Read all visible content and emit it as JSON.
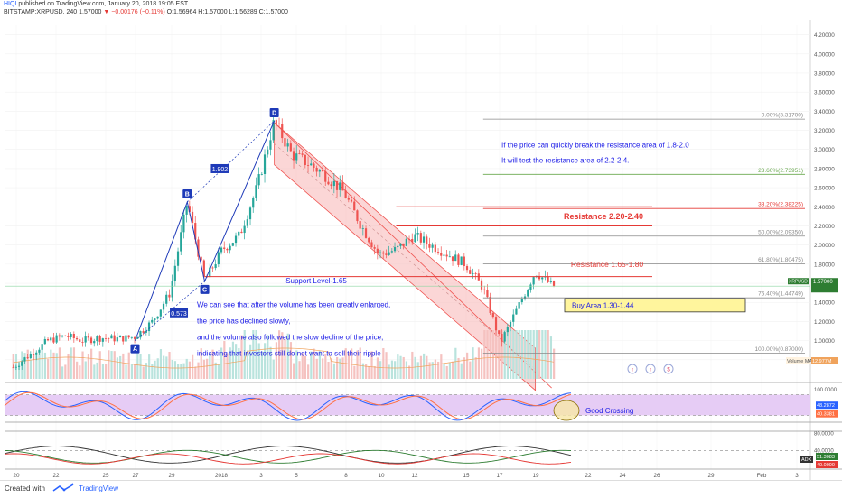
{
  "header": {
    "author": "HIQI",
    "published": "published on TradingView.com, January 20, 2018 19:05 EST",
    "symbol": "BITSTAMP:XRPUSD, 240",
    "last": "1.57000",
    "change": "▼ −0.00176 (−0.11%)",
    "ohlc": "O:1.56964 H:1.57000 L:1.56289 C:1.57000"
  },
  "chart_data": [
    {
      "type": "candlestick",
      "ylim": [
        0.6,
        4.3
      ],
      "y_ticks": [
        4.2,
        4.0,
        3.8,
        3.6,
        3.4,
        3.2,
        3.0,
        2.8,
        2.6,
        2.4,
        2.2,
        2.0,
        1.8,
        1.6,
        1.4,
        1.2,
        1.0,
        0.8
      ],
      "x_ticks": [
        "20",
        "22",
        "25",
        "27",
        "29",
        "2018",
        "3",
        "5",
        "8",
        "10",
        "12",
        "15",
        "17",
        "19",
        "22",
        "24",
        "26",
        "29",
        "Feb",
        "3"
      ],
      "price_path": [
        {
          "x": "2017-12-20",
          "y": 0.72
        },
        {
          "x": "2017-12-21",
          "y": 0.86
        },
        {
          "x": "2017-12-22",
          "y": 1.0
        },
        {
          "x": "2017-12-23",
          "y": 1.05
        },
        {
          "x": "2017-12-24",
          "y": 1.0
        },
        {
          "x": "2017-12-25",
          "y": 1.03
        },
        {
          "x": "2017-12-26",
          "y": 1.02
        },
        {
          "x": "2017-12-27",
          "y": 1.04
        },
        {
          "x": "2017-12-28",
          "y": 1.2
        },
        {
          "x": "2017-12-29",
          "y": 1.5
        },
        {
          "x": "2017-12-30",
          "y": 2.45
        },
        {
          "x": "2017-12-31",
          "y": 1.62
        },
        {
          "x": "2018-01-01",
          "y": 1.95
        },
        {
          "x": "2018-01-02",
          "y": 2.1
        },
        {
          "x": "2018-01-03",
          "y": 2.6
        },
        {
          "x": "2018-01-04",
          "y": 3.3
        },
        {
          "x": "2018-01-05",
          "y": 2.95
        },
        {
          "x": "2018-01-06",
          "y": 2.85
        },
        {
          "x": "2018-01-07",
          "y": 2.72
        },
        {
          "x": "2018-01-08",
          "y": 2.55
        },
        {
          "x": "2018-01-09",
          "y": 2.2
        },
        {
          "x": "2018-01-10",
          "y": 1.9
        },
        {
          "x": "2018-01-11",
          "y": 1.95
        },
        {
          "x": "2018-01-12",
          "y": 2.1
        },
        {
          "x": "2018-01-13",
          "y": 2.0
        },
        {
          "x": "2018-01-14",
          "y": 1.9
        },
        {
          "x": "2018-01-15",
          "y": 1.8
        },
        {
          "x": "2018-01-16",
          "y": 1.55
        },
        {
          "x": "2018-01-17",
          "y": 0.98
        },
        {
          "x": "2018-01-18",
          "y": 1.35
        },
        {
          "x": "2018-01-19",
          "y": 1.72
        },
        {
          "x": "2018-01-20",
          "y": 1.57
        }
      ],
      "current_price": "1.57000",
      "price_label_tag": "XRPUSD",
      "fibonacci": [
        {
          "label": "0.00%(3.31700)",
          "value": 3.317
        },
        {
          "label": "23.60%(2.73951)",
          "value": 2.7395
        },
        {
          "label": "38.20%(2.38225)",
          "value": 2.3823
        },
        {
          "label": "50.00%(2.09350)",
          "value": 2.0935
        },
        {
          "label": "61.80%(1.80475)",
          "value": 1.8048
        },
        {
          "label": "76.40%(1.44749)",
          "value": 1.4475
        },
        {
          "label": "100.00%(0.87000)",
          "value": 0.87
        }
      ],
      "harmonic_points": [
        {
          "label": "A",
          "x": "2017-12-27",
          "y": 1.0
        },
        {
          "label": "B",
          "x": "2017-12-30",
          "y": 2.45
        },
        {
          "label": "C",
          "x": "2017-12-31",
          "y": 1.62
        },
        {
          "label": "D",
          "x": "2018-01-04",
          "y": 3.3
        }
      ],
      "harmonic_ratios": [
        "0.573",
        "1.902"
      ],
      "annotations": {
        "resistance_high": "Resistance 2.20-2.40",
        "resistance_low": "Resistance 1.65-1.80",
        "support": "Support Level-1.65",
        "buy_area": "Buy Area 1.30-1.44",
        "note_right": [
          "If the price can quickly break the resistance area of 1.8-2.0",
          "It will test the resistance area of 2.2-2.4."
        ],
        "note_left": [
          "We can see that after the volume has been greatly enlarged,",
          "the price has declined slowly,",
          "and the volume also followed the slow decline of the price,",
          "indicating that investors still do not want to sell their ripple"
        ]
      },
      "volume_label": "Volume MA",
      "volume_value": "12.977M"
    },
    {
      "type": "line",
      "ylim": [
        0,
        100
      ],
      "y_ticks": [
        "100.0000",
        "0.0000"
      ],
      "values_label_top": "48.2872",
      "values_label_bottom": "40.3381",
      "annotation": "Good Crossing"
    },
    {
      "type": "line",
      "y_ticks": [
        "80.0000",
        "40.0000"
      ],
      "indicator": "ADX",
      "values_label_top": "51.3083",
      "values_label_bottom": "40.0000"
    }
  ],
  "footer": {
    "created_with": "Created with",
    "brand": "TradingView"
  },
  "colors": {
    "up": "#26a69a",
    "down": "#ef5350",
    "channel": "#f8b4b4",
    "fib": "#8a8a8a",
    "resistance": "#e53935",
    "annotation_text": "#1a1ae6",
    "buy_box": "#fff59d",
    "stoch_band": "#e6ccf5"
  }
}
